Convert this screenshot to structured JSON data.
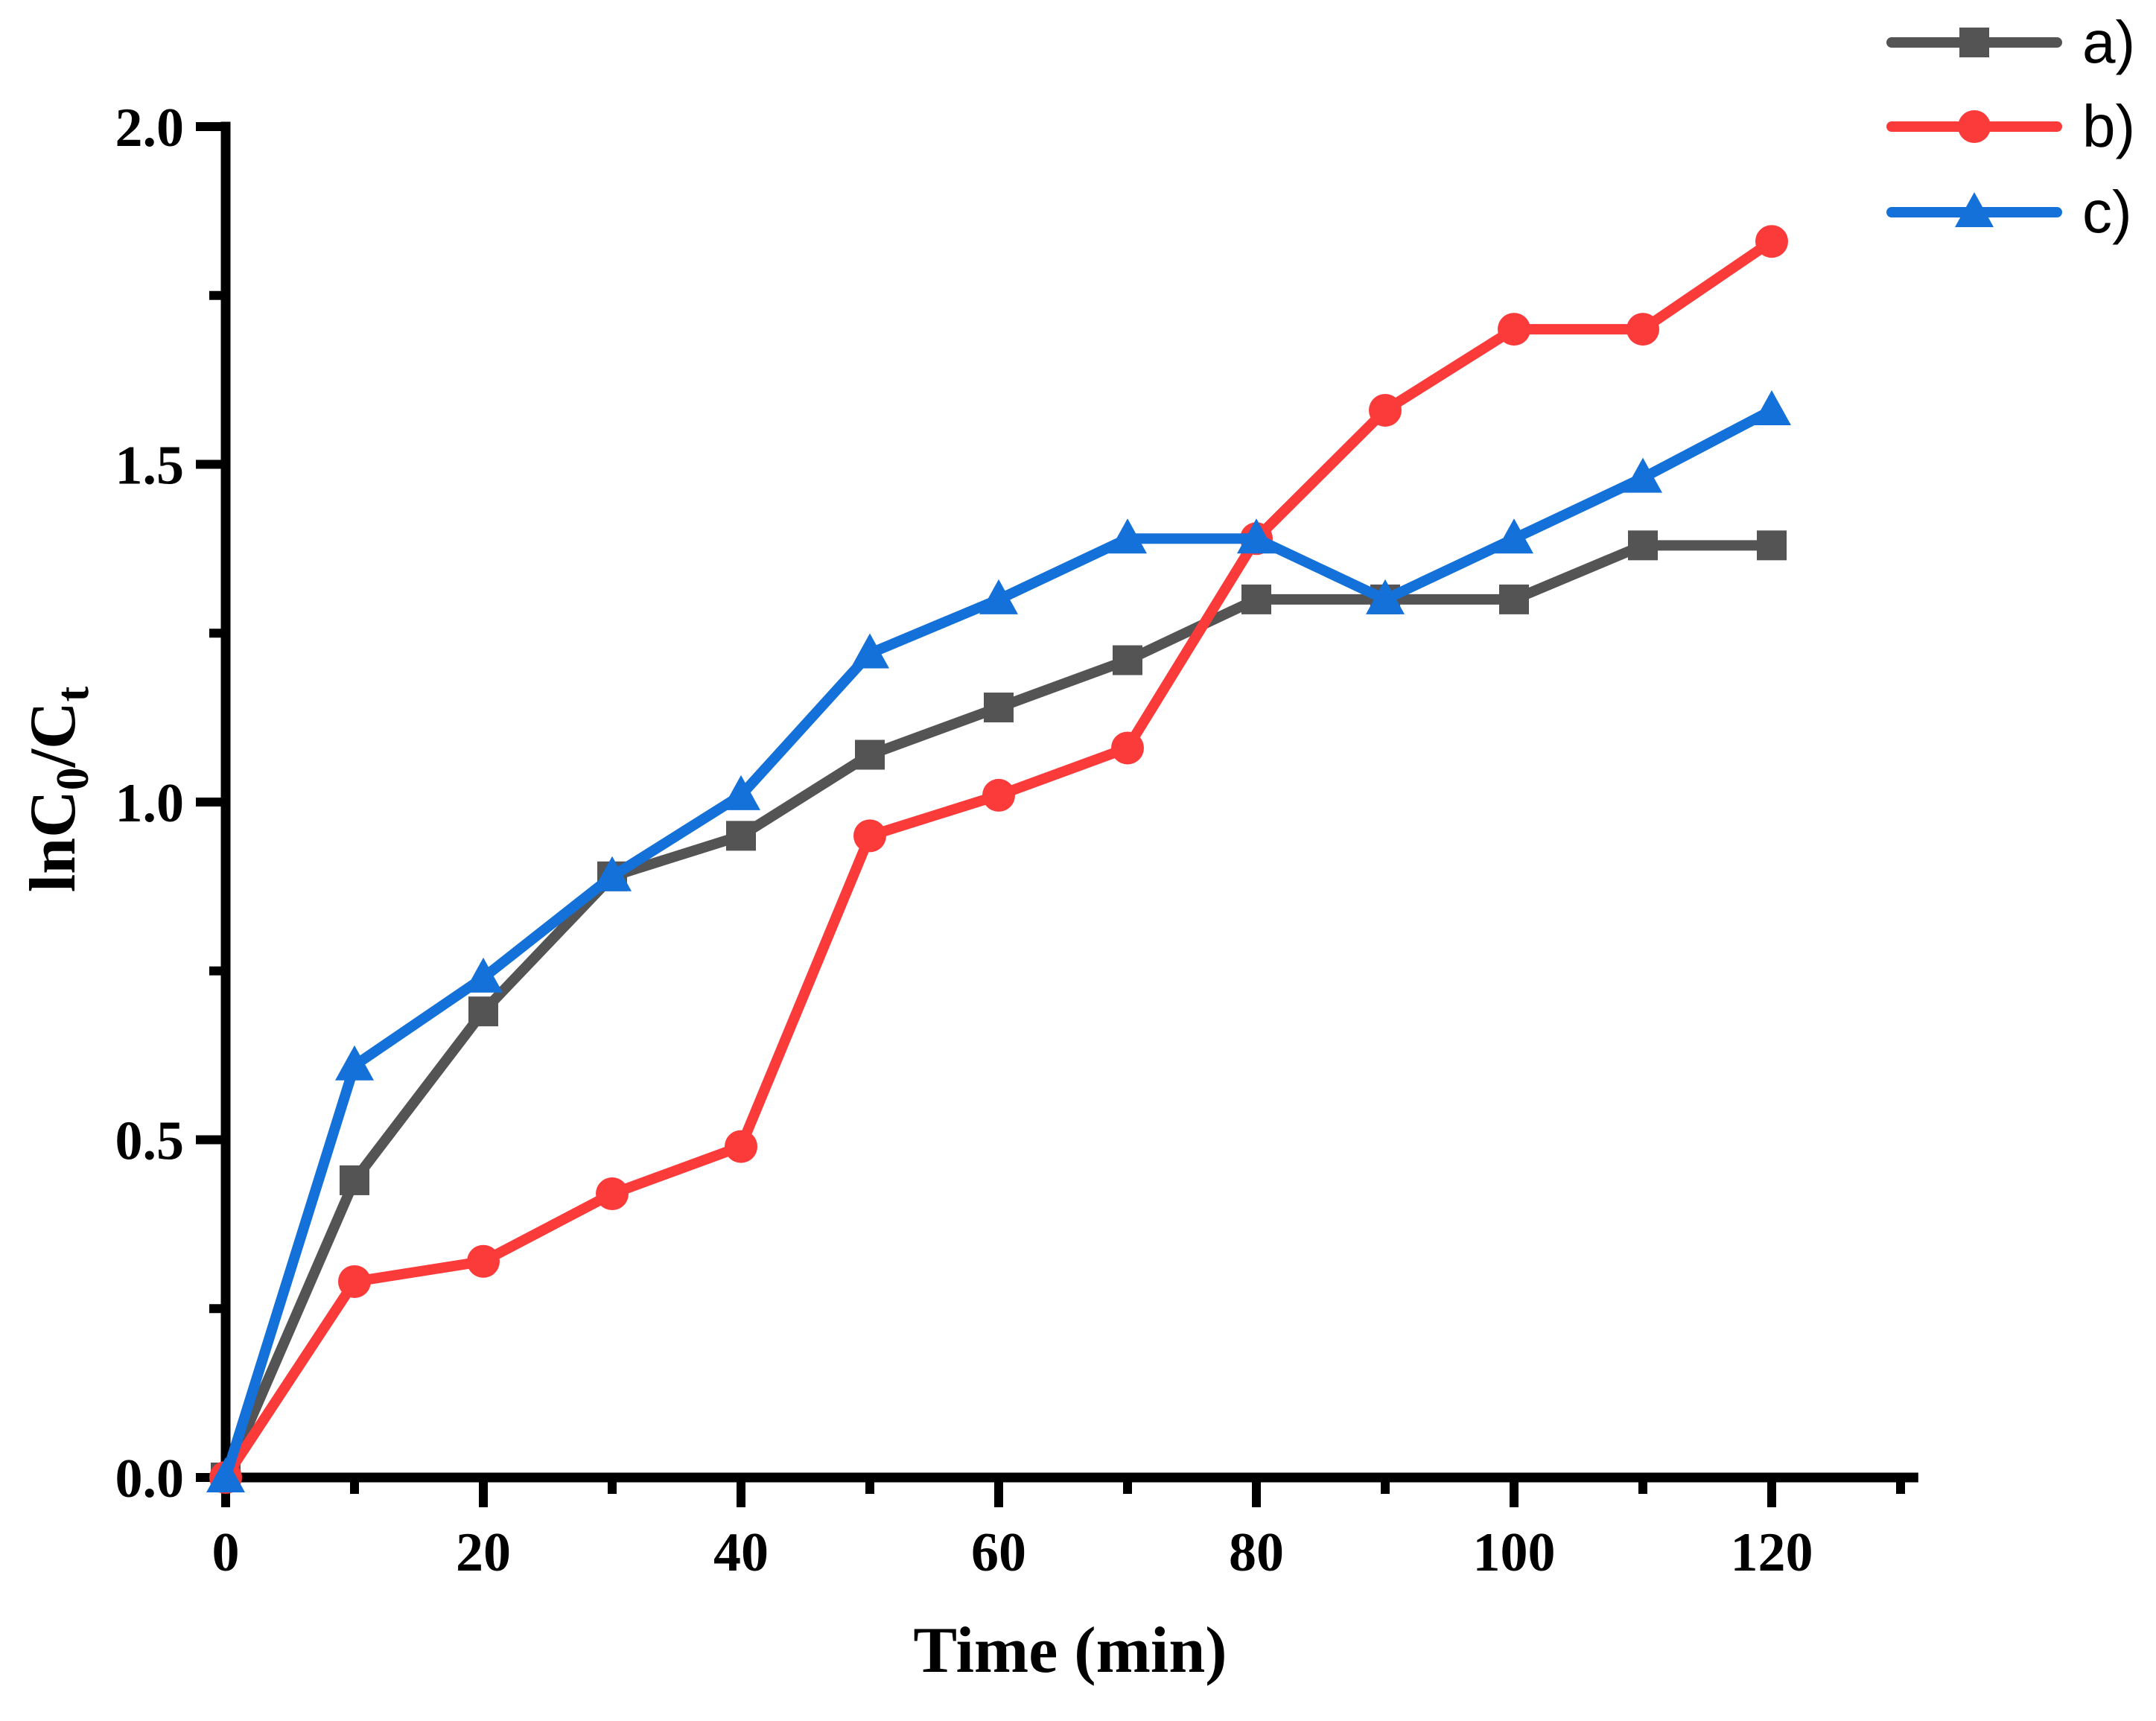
{
  "figure": {
    "background": "#ffffff",
    "axis_color": "#000000"
  },
  "chart_data": {
    "type": "line",
    "title": "",
    "xlabel": "Time (min)",
    "ylabel": "lnC0/Ct",
    "ylabel_parts": [
      {
        "text": "lnC",
        "sub": false
      },
      {
        "text": "0",
        "sub": true
      },
      {
        "text": "/C",
        "sub": false
      },
      {
        "text": "t",
        "sub": true
      }
    ],
    "xlim": [
      0,
      131
    ],
    "ylim": [
      0,
      2.0
    ],
    "grid": false,
    "legend_position": "top-right",
    "x": [
      0,
      10,
      20,
      30,
      40,
      50,
      60,
      70,
      80,
      90,
      100,
      110,
      120
    ],
    "series": [
      {
        "name": "a)",
        "marker": "square",
        "color": "#545454",
        "values": [
          0.0,
          0.44,
          0.69,
          0.89,
          0.95,
          1.07,
          1.14,
          1.21,
          1.3,
          1.3,
          1.3,
          1.38,
          1.38
        ]
      },
      {
        "name": "b)",
        "marker": "circle",
        "color": "#FB3A3A",
        "values": [
          0.0,
          0.29,
          0.32,
          0.42,
          0.49,
          0.95,
          1.01,
          1.08,
          1.39,
          1.58,
          1.7,
          1.7,
          1.83
        ]
      },
      {
        "name": "c)",
        "marker": "triangle",
        "color": "#1471D9",
        "values": [
          0.0,
          0.61,
          0.74,
          0.89,
          1.01,
          1.22,
          1.3,
          1.39,
          1.39,
          1.3,
          1.39,
          1.48,
          1.58
        ]
      }
    ],
    "x_major_ticks": [
      {
        "v": 0,
        "label": "0"
      },
      {
        "v": 20,
        "label": "20"
      },
      {
        "v": 40,
        "label": "40"
      },
      {
        "v": 60,
        "label": "60"
      },
      {
        "v": 80,
        "label": "80"
      },
      {
        "v": 100,
        "label": "100"
      },
      {
        "v": 120,
        "label": "120"
      }
    ],
    "x_minor_ticks": [
      10,
      30,
      50,
      70,
      90,
      110,
      130
    ],
    "y_major_ticks": [
      {
        "v": 0.0,
        "label": "0.0"
      },
      {
        "v": 0.5,
        "label": "0.5"
      },
      {
        "v": 1.0,
        "label": "1.0"
      },
      {
        "v": 1.5,
        "label": "1.5"
      },
      {
        "v": 2.0,
        "label": "2.0"
      }
    ],
    "y_minor_ticks": [
      0.25,
      0.75,
      1.25,
      1.75
    ]
  },
  "legend": {
    "items": [
      {
        "label": "a)"
      },
      {
        "label": "b)"
      },
      {
        "label": "c)"
      }
    ]
  }
}
